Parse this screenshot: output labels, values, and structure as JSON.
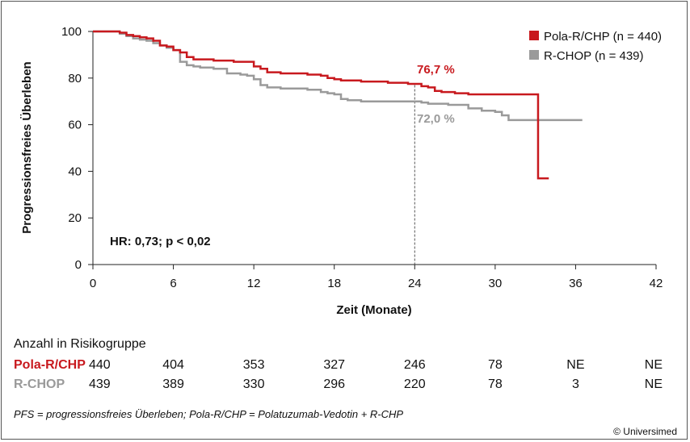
{
  "chart_data": {
    "type": "line",
    "step": true,
    "xlabel": "Zeit (Monate)",
    "ylabel": "Progressionsfreies Überleben",
    "xlim": [
      0,
      42
    ],
    "ylim": [
      0,
      100
    ],
    "xticks": [
      "0",
      "6",
      "12",
      "18",
      "24",
      "30",
      "36",
      "42"
    ],
    "yticks": [
      "0",
      "20",
      "40",
      "60",
      "80",
      "100"
    ],
    "grid": false,
    "legend_position": "top-right",
    "reference_line_x": 24,
    "hr_text": "HR: 0,73; p < 0,02",
    "series": [
      {
        "name": "Pola-R/CHP (n = 440)",
        "color": "#c8191e",
        "annotation": "76,7 %",
        "x": [
          0,
          1,
          2,
          2.5,
          3,
          3.5,
          4,
          4.5,
          5,
          5.5,
          6,
          6.5,
          7,
          7.5,
          9,
          10.5,
          12,
          12.5,
          13,
          14,
          16,
          17,
          17.5,
          18,
          18.5,
          20,
          22,
          23.5,
          24.5,
          25,
          25.5,
          26,
          27,
          28,
          29.5,
          31,
          33.2,
          33.2,
          34
        ],
        "y": [
          100,
          100,
          99.5,
          98.5,
          98,
          97.5,
          97,
          96,
          94,
          93.5,
          92,
          91,
          89,
          88,
          87.5,
          87,
          85,
          84,
          82.5,
          82,
          81.5,
          81,
          80,
          79.5,
          79,
          78.5,
          78,
          77.5,
          76.5,
          76,
          74.5,
          74,
          73.5,
          73,
          73,
          73,
          73,
          37,
          37
        ]
      },
      {
        "name": "R-CHOP (n = 439)",
        "color": "#9a9a9a",
        "annotation": "72,0 %",
        "x": [
          0,
          1,
          2,
          2.5,
          3,
          3.5,
          4,
          4.5,
          5,
          5.5,
          6,
          6.5,
          7,
          7.5,
          8,
          9,
          10,
          11,
          11.5,
          12,
          12.5,
          13,
          14,
          16,
          17,
          17.5,
          18,
          18.5,
          19,
          20,
          22,
          24,
          24.5,
          25,
          26.5,
          28,
          29,
          30,
          30.5,
          31,
          36.5
        ],
        "y": [
          100,
          100,
          99,
          98,
          97,
          96.5,
          96,
          95,
          94,
          93,
          92,
          87,
          85.5,
          85,
          84.5,
          84,
          82,
          81.5,
          81,
          79.5,
          77,
          76,
          75.5,
          75,
          74,
          73.5,
          73,
          71,
          70.5,
          70,
          70,
          70,
          69.5,
          69,
          68.5,
          67,
          66,
          65.5,
          64,
          62,
          62
        ]
      }
    ]
  },
  "risk_table": {
    "title": "Anzahl in Risikogruppe",
    "rows": [
      {
        "label": "Pola-R/CHP",
        "values": [
          "440",
          "404",
          "353",
          "327",
          "246",
          "78",
          "NE",
          "NE"
        ]
      },
      {
        "label": "R-CHOP",
        "values": [
          "439",
          "389",
          "330",
          "296",
          "220",
          "78",
          "3",
          "NE"
        ]
      }
    ]
  },
  "footnote": "PFS = progressionsfreies Überleben; Pola-R/CHP = Polatuzumab-Vedotin + R-CHP",
  "copyright": "© Universimed"
}
